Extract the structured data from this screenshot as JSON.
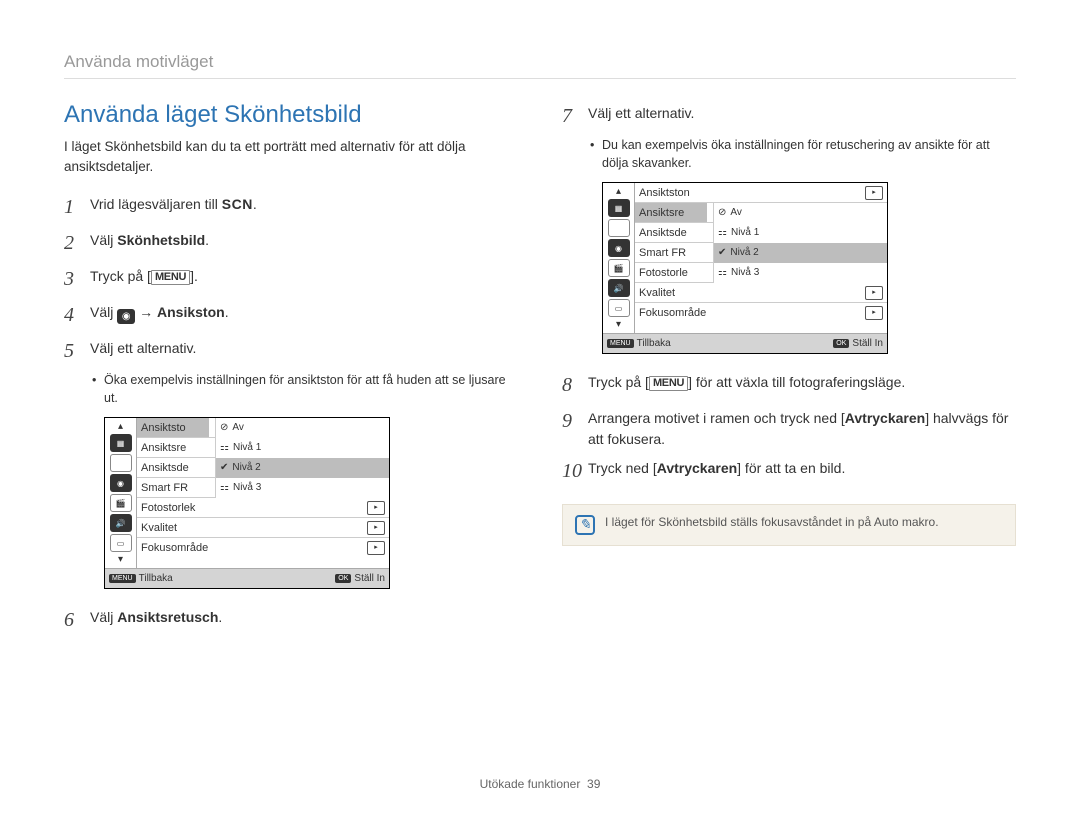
{
  "breadcrumb": "Använda motivläget",
  "section_title": "Använda läget Skönhetsbild",
  "intro": "I läget Skönhetsbild kan du ta ett porträtt med alternativ för att dölja ansiktsdetaljer.",
  "menu_label": "MENU",
  "scn_label": "SCN",
  "steps_left": {
    "s1_pre": "Vrid lägesväljaren till ",
    "s1_post": ".",
    "s2_pre": "Välj ",
    "s2_bold": "Skönhetsbild",
    "s2_post": ".",
    "s3_pre": "Tryck på [",
    "s3_post": "].",
    "s4_pre": "Välj ",
    "s4_arrow": " → ",
    "s4_bold": "Ansikston",
    "s4_post": ".",
    "s5": "Välj ett alternativ.",
    "s5_sub": "Öka exempelvis inställningen för ansiktston för att få huden att se ljusare ut.",
    "s6_pre": "Välj ",
    "s6_bold": "Ansiktsretusch",
    "s6_post": "."
  },
  "steps_right": {
    "s7": "Välj ett alternativ.",
    "s7_sub": "Du kan exempelvis öka inställningen för retuschering av ansikte för att dölja skavanker.",
    "s8_pre": "Tryck på [",
    "s8_post": "] för att växla till fotograferingsläge.",
    "s9_pre": "Arrangera motivet i ramen och tryck ned [",
    "s9_bold": "Avtryckaren",
    "s9_post": "] halvvägs för att fokusera.",
    "s10_pre": "Tryck ned [",
    "s10_bold": "Avtryckaren",
    "s10_post": "] för att ta en bild."
  },
  "note": "I läget för Skönhetsbild ställs fokusavståndet in på Auto makro.",
  "lcd_left": {
    "rows": [
      {
        "label": "Ansiktsto",
        "sub": "Av",
        "sel_row": true,
        "sub_sel": false,
        "icon": "off"
      },
      {
        "label": "Ansiktsre",
        "sub": "Nivå 1",
        "sub_sel": false,
        "icon": "1"
      },
      {
        "label": "Ansiktsde",
        "sub": "Nivå 2",
        "sub_sel": true,
        "icon": "2"
      },
      {
        "label": "Smart FR",
        "sub": "Nivå 3",
        "sub_sel": false,
        "icon": "3"
      },
      {
        "label": "Fotostorlek",
        "ricon": "▸"
      },
      {
        "label": "Kvalitet",
        "ricon": "▸"
      },
      {
        "label": "Fokusområde",
        "ricon": "▸"
      }
    ],
    "back": "Tillbaka",
    "set": "Ställ In"
  },
  "lcd_right": {
    "rows": [
      {
        "label": "Ansiktston",
        "ricon": "▸"
      },
      {
        "label": "Ansiktsre",
        "sub": "Av",
        "sel_row": true,
        "sub_sel": false,
        "icon": "off"
      },
      {
        "label": "Ansiktsde",
        "sub": "Nivå 1",
        "sub_sel": false,
        "icon": "1"
      },
      {
        "label": "Smart FR",
        "sub": "Nivå 2",
        "sub_sel": true,
        "icon": "2"
      },
      {
        "label": "Fotostorle",
        "sub": "Nivå 3",
        "sub_sel": false,
        "icon": "3"
      },
      {
        "label": "Kvalitet",
        "ricon": "▸"
      },
      {
        "label": "Fokusområde",
        "ricon": "▸"
      }
    ],
    "back": "Tillbaka",
    "set": "Ställ In"
  },
  "footer_label": "Utökade funktioner",
  "footer_page": "39",
  "colors": {
    "accent": "#2d74b3",
    "muted": "#999999",
    "note_bg": "#f5f2ea",
    "sel_bg": "#bdbdbd"
  }
}
